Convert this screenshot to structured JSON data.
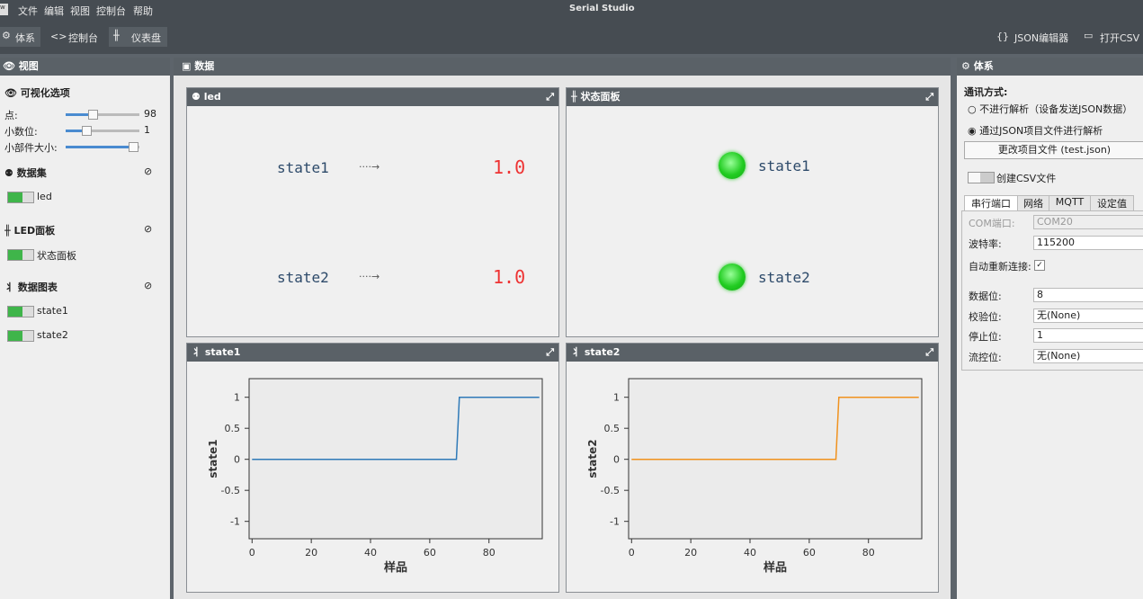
{
  "titlebar": {
    "menu": [
      "文件",
      "编辑",
      "视图",
      "控制台",
      "帮助"
    ],
    "title": "Serial Studio"
  },
  "toolbar": {
    "left": [
      "体系",
      "控制台",
      "仪表盘"
    ],
    "right": [
      "JSON编辑器",
      "打开CSV"
    ]
  },
  "view_panel": {
    "title": "视图",
    "options_title": "可视化选项",
    "sliders": [
      {
        "label": "点:",
        "value": 98
      },
      {
        "label": "小数位:",
        "value": 1
      },
      {
        "label": "小部件大小:"
      }
    ],
    "groups": [
      {
        "title": "数据集",
        "items": [
          "led"
        ]
      },
      {
        "title": "LED面板",
        "items": [
          "状态面板"
        ]
      },
      {
        "title": "数据图表",
        "items": [
          "state1",
          "state2"
        ]
      }
    ]
  },
  "data_panel": {
    "title": "数据",
    "led_widget": {
      "title": "led",
      "rows": [
        {
          "label": "state1",
          "value": "1.0"
        },
        {
          "label": "state2",
          "value": "1.0"
        }
      ]
    },
    "status_widget": {
      "title": "状态面板",
      "leds": [
        "state1",
        "state2"
      ]
    }
  },
  "chart_data": [
    {
      "type": "line",
      "title": "state1",
      "y_label": "state1",
      "x_label": "样品",
      "color": "#2f7ab8",
      "x": [
        0,
        69,
        70,
        97
      ],
      "values": [
        0,
        0,
        1,
        1
      ],
      "xlim": [
        -1,
        98
      ],
      "ylim": [
        -1.28,
        1.3
      ],
      "xticks": [
        0,
        20,
        40,
        60,
        80
      ],
      "yticks": [
        -1,
        -0.5,
        0,
        0.5,
        1
      ]
    },
    {
      "type": "line",
      "title": "state2",
      "y_label": "state2",
      "x_label": "样品",
      "color": "#f0921e",
      "x": [
        0,
        69,
        70,
        97
      ],
      "values": [
        0,
        0,
        1,
        1
      ],
      "xlim": [
        -1,
        98
      ],
      "ylim": [
        -1.28,
        1.3
      ],
      "xticks": [
        0,
        20,
        40,
        60,
        80
      ],
      "yticks": [
        -1,
        -0.5,
        0,
        0.5,
        1
      ]
    }
  ],
  "settings_panel": {
    "title": "体系",
    "comm_label": "通讯方式:",
    "radios": [
      "不进行解析（设备发送JSON数据）",
      "通过JSON项目文件进行解析"
    ],
    "button": "更改项目文件 (test.json)",
    "csv_toggle": "创建CSV文件",
    "tabs": [
      "串行端口",
      "网络",
      "MQTT",
      "设定值"
    ],
    "fields": [
      {
        "label": "COM端口:",
        "value": "COM20"
      },
      {
        "label": "波特率:",
        "value": "115200"
      },
      {
        "label": "自动重新连接:"
      },
      {
        "label": "数据位:",
        "value": "8"
      },
      {
        "label": "校验位:",
        "value": "无(None)"
      },
      {
        "label": "停止位:",
        "value": "1"
      },
      {
        "label": "流控位:",
        "value": "无(None)"
      }
    ]
  }
}
